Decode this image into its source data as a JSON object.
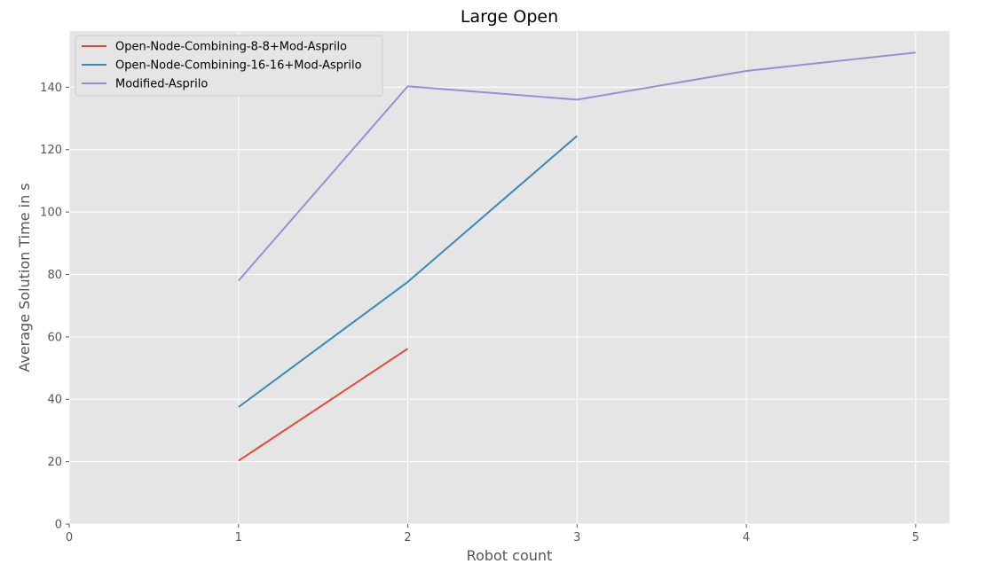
{
  "chart_data": {
    "type": "line",
    "title": "Large Open",
    "xlabel": "Robot count",
    "ylabel": "Average Solution Time in s",
    "xlim": [
      0,
      5.2
    ],
    "ylim": [
      0,
      158
    ],
    "xticks": [
      0,
      1,
      2,
      3,
      4,
      5
    ],
    "yticks": [
      0,
      20,
      40,
      60,
      80,
      100,
      120,
      140
    ],
    "grid": true,
    "legend_position": "top-left",
    "background": "#e5e5e5",
    "series": [
      {
        "name": "Open-Node-Combining-8-8+Mod-Asprilo",
        "color": "#e24a33",
        "x": [
          1,
          2
        ],
        "values": [
          20.3,
          56.2
        ]
      },
      {
        "name": "Open-Node-Combining-16-16+Mod-Asprilo",
        "color": "#348abd",
        "x": [
          1,
          2,
          3
        ],
        "values": [
          37.5,
          77.6,
          124.4
        ]
      },
      {
        "name": "Modified-Asprilo",
        "color": "#988ed5",
        "x": [
          1,
          2,
          3,
          4,
          5
        ],
        "values": [
          78.0,
          140.3,
          136.0,
          145.2,
          151.1
        ]
      }
    ]
  }
}
